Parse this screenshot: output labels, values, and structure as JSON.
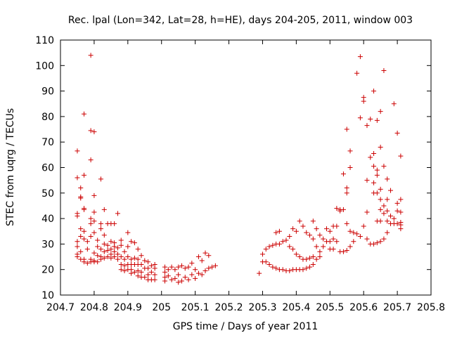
{
  "chart_data": {
    "type": "scatter",
    "title": "Rec. lpal (Lon=342, Lat=28, h=HE), days 204-205, 2011, window 003",
    "xlabel": "GPS time / Days of year 2011",
    "ylabel": "STEC from uqrg / TECUs",
    "xlim": [
      204.7,
      205.8
    ],
    "ylim": [
      10,
      110
    ],
    "xticks": [
      204.7,
      204.8,
      204.9,
      205.0,
      205.1,
      205.2,
      205.3,
      205.4,
      205.5,
      205.6,
      205.7,
      205.8
    ],
    "xtick_labels": [
      "204.7",
      "204.8",
      "204.9",
      "205",
      "205.1",
      "205.2",
      "205.3",
      "205.4",
      "205.5",
      "205.6",
      "205.7",
      "205.8"
    ],
    "yticks": [
      10,
      20,
      30,
      40,
      50,
      60,
      70,
      80,
      90,
      100,
      110
    ],
    "ytick_labels": [
      "10",
      "20",
      "30",
      "40",
      "50",
      "60",
      "70",
      "80",
      "90",
      "100",
      "110"
    ],
    "grid": false,
    "marker": "+",
    "color": "#cc0000",
    "series": [
      {
        "points": [
          [
            204.75,
            66.5
          ],
          [
            204.75,
            56
          ],
          [
            204.75,
            42
          ],
          [
            204.75,
            41
          ],
          [
            204.75,
            31
          ],
          [
            204.75,
            29
          ],
          [
            204.75,
            26
          ],
          [
            204.75,
            25
          ],
          [
            204.76,
            52
          ],
          [
            204.76,
            48.5
          ],
          [
            204.76,
            48
          ],
          [
            204.76,
            36
          ],
          [
            204.76,
            33
          ],
          [
            204.76,
            27
          ],
          [
            204.76,
            24
          ],
          [
            204.77,
            81
          ],
          [
            204.77,
            57
          ],
          [
            204.77,
            44
          ],
          [
            204.77,
            43.5
          ],
          [
            204.77,
            35
          ],
          [
            204.77,
            32
          ],
          [
            204.77,
            24
          ],
          [
            204.77,
            23
          ],
          [
            204.78,
            31
          ],
          [
            204.78,
            28
          ],
          [
            204.78,
            22.5
          ],
          [
            204.79,
            104
          ],
          [
            204.79,
            74.5
          ],
          [
            204.79,
            63
          ],
          [
            204.79,
            40
          ],
          [
            204.79,
            38
          ],
          [
            204.79,
            33
          ],
          [
            204.79,
            24
          ],
          [
            204.79,
            23
          ],
          [
            204.8,
            74
          ],
          [
            204.8,
            49
          ],
          [
            204.8,
            42.5
          ],
          [
            204.8,
            39
          ],
          [
            204.8,
            34.5
          ],
          [
            204.8,
            26.5
          ],
          [
            204.8,
            23.5
          ],
          [
            204.8,
            23
          ],
          [
            204.81,
            31.5
          ],
          [
            204.81,
            29
          ],
          [
            204.81,
            25.5
          ],
          [
            204.81,
            23
          ],
          [
            204.82,
            55.5
          ],
          [
            204.82,
            38
          ],
          [
            204.82,
            36
          ],
          [
            204.82,
            28
          ],
          [
            204.82,
            25
          ],
          [
            204.82,
            24
          ],
          [
            204.83,
            43.5
          ],
          [
            204.83,
            33.5
          ],
          [
            204.83,
            30
          ],
          [
            204.83,
            27
          ],
          [
            204.83,
            24.5
          ],
          [
            204.84,
            38
          ],
          [
            204.84,
            29.5
          ],
          [
            204.84,
            27.5
          ],
          [
            204.84,
            25
          ],
          [
            204.85,
            38
          ],
          [
            204.85,
            31
          ],
          [
            204.85,
            28
          ],
          [
            204.85,
            26
          ],
          [
            204.85,
            24.5
          ],
          [
            204.86,
            38
          ],
          [
            204.86,
            30.5
          ],
          [
            204.86,
            29
          ],
          [
            204.86,
            27
          ],
          [
            204.86,
            25
          ],
          [
            204.87,
            42
          ],
          [
            204.87,
            28.5
          ],
          [
            204.87,
            26
          ],
          [
            204.87,
            24
          ],
          [
            204.88,
            31.5
          ],
          [
            204.88,
            29.5
          ],
          [
            204.88,
            25
          ],
          [
            204.88,
            22
          ],
          [
            204.88,
            20
          ],
          [
            204.89,
            27
          ],
          [
            204.89,
            24
          ],
          [
            204.89,
            21.5
          ],
          [
            204.89,
            19.5
          ],
          [
            204.9,
            34.5
          ],
          [
            204.9,
            29
          ],
          [
            204.9,
            25
          ],
          [
            204.9,
            22
          ],
          [
            204.9,
            20
          ],
          [
            204.91,
            31
          ],
          [
            204.91,
            24
          ],
          [
            204.91,
            22
          ],
          [
            204.91,
            20
          ],
          [
            204.91,
            18.5
          ],
          [
            204.92,
            30.5
          ],
          [
            204.92,
            24.5
          ],
          [
            204.92,
            22
          ],
          [
            204.92,
            19
          ],
          [
            204.93,
            28
          ],
          [
            204.93,
            24
          ],
          [
            204.93,
            22
          ],
          [
            204.93,
            19.5
          ],
          [
            204.93,
            17.5
          ],
          [
            204.94,
            25.5
          ],
          [
            204.94,
            22
          ],
          [
            204.94,
            19
          ],
          [
            204.94,
            17
          ],
          [
            204.95,
            23.5
          ],
          [
            204.95,
            20.5
          ],
          [
            204.95,
            17
          ],
          [
            204.96,
            23
          ],
          [
            204.96,
            20.5
          ],
          [
            204.96,
            18
          ],
          [
            204.96,
            16
          ],
          [
            204.97,
            21.5
          ],
          [
            204.97,
            19
          ],
          [
            204.97,
            16
          ],
          [
            204.98,
            22
          ],
          [
            204.98,
            20.5
          ],
          [
            204.98,
            18
          ],
          [
            204.98,
            16
          ],
          [
            205.01,
            21
          ],
          [
            205.01,
            19
          ],
          [
            205.01,
            17
          ],
          [
            205.01,
            15.5
          ],
          [
            205.02,
            20
          ],
          [
            205.02,
            17.5
          ],
          [
            205.03,
            21
          ],
          [
            205.03,
            16
          ],
          [
            205.04,
            20
          ],
          [
            205.04,
            16.5
          ],
          [
            205.05,
            21
          ],
          [
            205.05,
            18
          ],
          [
            205.05,
            15
          ],
          [
            205.06,
            21.5
          ],
          [
            205.06,
            15.5
          ],
          [
            205.07,
            20.5
          ],
          [
            205.07,
            17
          ],
          [
            205.08,
            21
          ],
          [
            205.08,
            16
          ],
          [
            205.09,
            22.5
          ],
          [
            205.09,
            18
          ],
          [
            205.1,
            20
          ],
          [
            205.1,
            16.5
          ],
          [
            205.11,
            25
          ],
          [
            205.11,
            18.5
          ],
          [
            205.12,
            23.5
          ],
          [
            205.12,
            18
          ],
          [
            205.13,
            26.5
          ],
          [
            205.13,
            19.5
          ],
          [
            205.14,
            25.5
          ],
          [
            205.14,
            20.5
          ],
          [
            205.15,
            21
          ],
          [
            205.16,
            21.5
          ],
          [
            205.29,
            18.5
          ],
          [
            205.3,
            26
          ],
          [
            205.3,
            23
          ],
          [
            205.31,
            28
          ],
          [
            205.31,
            23
          ],
          [
            205.32,
            29
          ],
          [
            205.32,
            22
          ],
          [
            205.33,
            29.5
          ],
          [
            205.33,
            21
          ],
          [
            205.34,
            34.5
          ],
          [
            205.34,
            30
          ],
          [
            205.34,
            20.5
          ],
          [
            205.35,
            35
          ],
          [
            205.35,
            30
          ],
          [
            205.35,
            20
          ],
          [
            205.36,
            31
          ],
          [
            205.36,
            20
          ],
          [
            205.37,
            31.5
          ],
          [
            205.37,
            19.5
          ],
          [
            205.38,
            33
          ],
          [
            205.38,
            29
          ],
          [
            205.38,
            19.5
          ],
          [
            205.39,
            36
          ],
          [
            205.39,
            28
          ],
          [
            205.39,
            20
          ],
          [
            205.4,
            35
          ],
          [
            205.4,
            26
          ],
          [
            205.4,
            20
          ],
          [
            205.41,
            39
          ],
          [
            205.41,
            25
          ],
          [
            205.41,
            20
          ],
          [
            205.42,
            37
          ],
          [
            205.42,
            24
          ],
          [
            205.42,
            20
          ],
          [
            205.43,
            34.5
          ],
          [
            205.43,
            24
          ],
          [
            205.43,
            20.5
          ],
          [
            205.44,
            33.5
          ],
          [
            205.44,
            24.5
          ],
          [
            205.44,
            21
          ],
          [
            205.45,
            39
          ],
          [
            205.45,
            32
          ],
          [
            205.45,
            25
          ],
          [
            205.45,
            22
          ],
          [
            205.46,
            36
          ],
          [
            205.46,
            29
          ],
          [
            205.46,
            24
          ],
          [
            205.47,
            33.5
          ],
          [
            205.47,
            27
          ],
          [
            205.47,
            25
          ],
          [
            205.48,
            32
          ],
          [
            205.48,
            29
          ],
          [
            205.49,
            36
          ],
          [
            205.49,
            31
          ],
          [
            205.5,
            35
          ],
          [
            205.5,
            31
          ],
          [
            205.5,
            28
          ],
          [
            205.51,
            37
          ],
          [
            205.51,
            32
          ],
          [
            205.51,
            28
          ],
          [
            205.52,
            44
          ],
          [
            205.52,
            37
          ],
          [
            205.52,
            31
          ],
          [
            205.53,
            43.5
          ],
          [
            205.53,
            43
          ],
          [
            205.53,
            27
          ],
          [
            205.54,
            57.5
          ],
          [
            205.54,
            43.5
          ],
          [
            205.54,
            27
          ],
          [
            205.55,
            75
          ],
          [
            205.55,
            52
          ],
          [
            205.55,
            50
          ],
          [
            205.55,
            38
          ],
          [
            205.55,
            27.5
          ],
          [
            205.56,
            66.5
          ],
          [
            205.56,
            60
          ],
          [
            205.56,
            35
          ],
          [
            205.56,
            29
          ],
          [
            205.57,
            34.5
          ],
          [
            205.57,
            31
          ],
          [
            205.58,
            97
          ],
          [
            205.58,
            34
          ],
          [
            205.59,
            103.5
          ],
          [
            205.59,
            79.5
          ],
          [
            205.59,
            33
          ],
          [
            205.6,
            87.5
          ],
          [
            205.6,
            86
          ],
          [
            205.6,
            37
          ],
          [
            205.61,
            76.5
          ],
          [
            205.61,
            55
          ],
          [
            205.61,
            42.5
          ],
          [
            205.61,
            32
          ],
          [
            205.62,
            79
          ],
          [
            205.62,
            64
          ],
          [
            205.62,
            30
          ],
          [
            205.63,
            90
          ],
          [
            205.63,
            65.5
          ],
          [
            205.63,
            60.5
          ],
          [
            205.63,
            54
          ],
          [
            205.63,
            50
          ],
          [
            205.63,
            30
          ],
          [
            205.64,
            78.5
          ],
          [
            205.64,
            59
          ],
          [
            205.64,
            57
          ],
          [
            205.64,
            50
          ],
          [
            205.64,
            39
          ],
          [
            205.64,
            30.5
          ],
          [
            205.65,
            82
          ],
          [
            205.65,
            68
          ],
          [
            205.65,
            51.5
          ],
          [
            205.65,
            47.5
          ],
          [
            205.65,
            43.5
          ],
          [
            205.65,
            39
          ],
          [
            205.65,
            31
          ],
          [
            205.66,
            98
          ],
          [
            205.66,
            60.5
          ],
          [
            205.66,
            45
          ],
          [
            205.66,
            42
          ],
          [
            205.66,
            32
          ],
          [
            205.67,
            55.5
          ],
          [
            205.67,
            47.5
          ],
          [
            205.67,
            43
          ],
          [
            205.67,
            39
          ],
          [
            205.67,
            34.5
          ],
          [
            205.68,
            51
          ],
          [
            205.68,
            41
          ],
          [
            205.68,
            38
          ],
          [
            205.69,
            85
          ],
          [
            205.69,
            40
          ],
          [
            205.69,
            38
          ],
          [
            205.7,
            73.5
          ],
          [
            205.7,
            46
          ],
          [
            205.7,
            43
          ],
          [
            205.7,
            38
          ],
          [
            205.71,
            64.5
          ],
          [
            205.71,
            47.5
          ],
          [
            205.71,
            42.5
          ],
          [
            205.71,
            38.5
          ],
          [
            205.71,
            37.5
          ],
          [
            205.71,
            36
          ]
        ]
      }
    ]
  }
}
